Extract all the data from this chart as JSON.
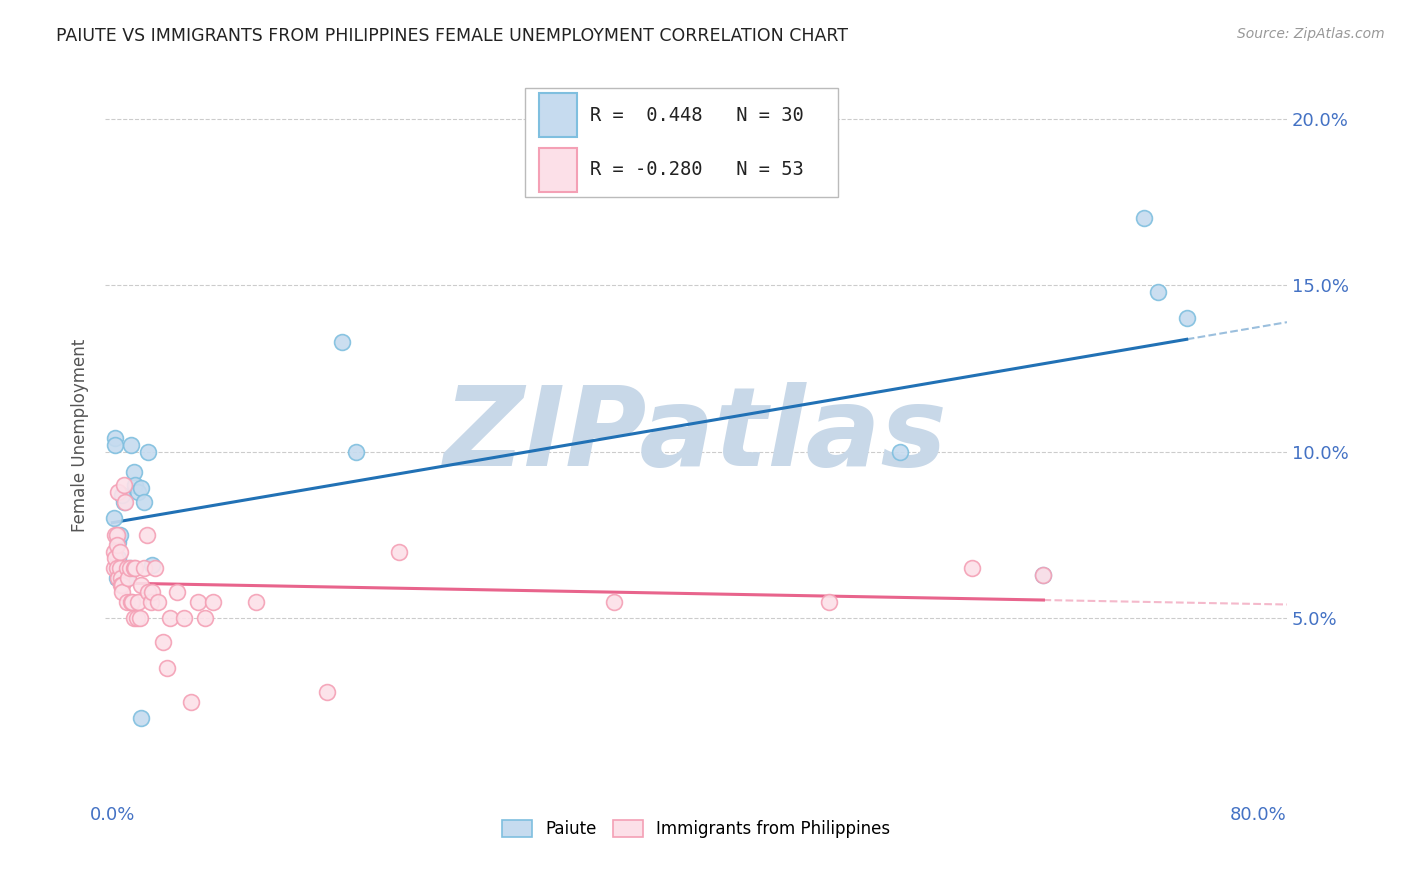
{
  "title": "PAIUTE VS IMMIGRANTS FROM PHILIPPINES FEMALE UNEMPLOYMENT CORRELATION CHART",
  "source": "Source: ZipAtlas.com",
  "ylabel": "Female Unemployment",
  "series": [
    {
      "name": "Paiute",
      "R": 0.448,
      "N": 30,
      "color": "#7fbfdf",
      "face_color": "#c6dbef",
      "line_color": "#2171b5",
      "points_x": [
        0.001,
        0.002,
        0.002,
        0.003,
        0.004,
        0.004,
        0.005,
        0.006,
        0.008,
        0.01,
        0.013,
        0.015,
        0.016,
        0.018,
        0.02,
        0.022,
        0.025,
        0.028,
        0.02,
        0.16,
        0.17,
        0.55,
        0.65,
        0.72,
        0.73,
        0.75,
        0.003,
        0.003,
        0.007,
        0.012
      ],
      "points_y": [
        0.08,
        0.104,
        0.102,
        0.075,
        0.073,
        0.068,
        0.075,
        0.062,
        0.085,
        0.062,
        0.102,
        0.094,
        0.09,
        0.088,
        0.089,
        0.085,
        0.1,
        0.066,
        0.02,
        0.133,
        0.1,
        0.1,
        0.063,
        0.17,
        0.148,
        0.14,
        0.065,
        0.062,
        0.087,
        0.065
      ]
    },
    {
      "name": "Immigrants from Philippines",
      "R": -0.28,
      "N": 53,
      "color": "#f4a0b5",
      "face_color": "#fce0e8",
      "line_color": "#e8648c",
      "points_x": [
        0.001,
        0.001,
        0.002,
        0.002,
        0.003,
        0.003,
        0.003,
        0.004,
        0.004,
        0.005,
        0.005,
        0.006,
        0.006,
        0.007,
        0.007,
        0.008,
        0.009,
        0.01,
        0.01,
        0.011,
        0.012,
        0.013,
        0.014,
        0.015,
        0.015,
        0.016,
        0.017,
        0.018,
        0.019,
        0.02,
        0.022,
        0.024,
        0.025,
        0.027,
        0.028,
        0.03,
        0.032,
        0.035,
        0.038,
        0.04,
        0.045,
        0.05,
        0.055,
        0.06,
        0.065,
        0.07,
        0.1,
        0.15,
        0.2,
        0.35,
        0.5,
        0.6,
        0.65
      ],
      "points_y": [
        0.065,
        0.07,
        0.075,
        0.068,
        0.075,
        0.072,
        0.065,
        0.088,
        0.062,
        0.07,
        0.065,
        0.062,
        0.06,
        0.06,
        0.058,
        0.09,
        0.085,
        0.065,
        0.055,
        0.062,
        0.065,
        0.055,
        0.055,
        0.065,
        0.05,
        0.065,
        0.05,
        0.055,
        0.05,
        0.06,
        0.065,
        0.075,
        0.058,
        0.055,
        0.058,
        0.065,
        0.055,
        0.043,
        0.035,
        0.05,
        0.058,
        0.05,
        0.025,
        0.055,
        0.05,
        0.055,
        0.055,
        0.028,
        0.07,
        0.055,
        0.055,
        0.065,
        0.063
      ]
    }
  ],
  "ylim": [
    -0.005,
    0.215
  ],
  "xlim": [
    -0.005,
    0.82
  ],
  "yticks": [
    0.05,
    0.1,
    0.15,
    0.2
  ],
  "ytick_labels": [
    "5.0%",
    "10.0%",
    "15.0%",
    "20.0%"
  ],
  "xticks": [
    0.0,
    0.1,
    0.2,
    0.3,
    0.4,
    0.5,
    0.6,
    0.7,
    0.8
  ],
  "xtick_labels": [
    "0.0%",
    "",
    "",
    "",
    "",
    "",
    "",
    "",
    "80.0%"
  ],
  "background_color": "#ffffff",
  "grid_color": "#cccccc",
  "watermark_text": "ZIPatlas",
  "watermark_color": "#c8d8e8",
  "legend_R_labels": [
    "R =  0.448   N = 30",
    "R = -0.280   N = 53"
  ]
}
